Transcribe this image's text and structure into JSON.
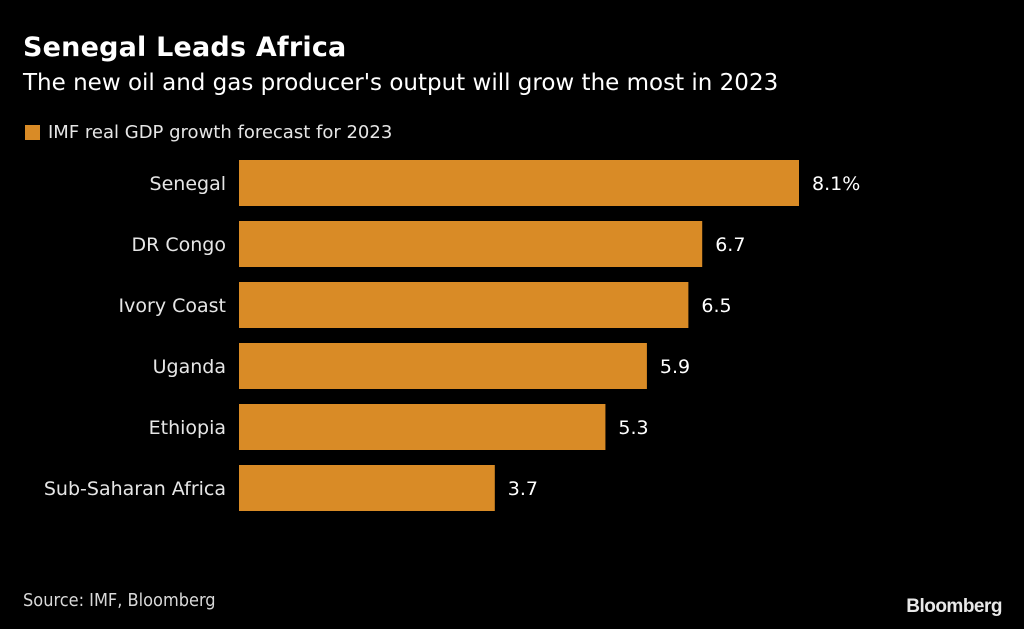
{
  "header": {
    "title": "Senegal Leads Africa",
    "subtitle": "The new oil and gas producer's output will grow the most in 2023"
  },
  "footer": {
    "source": "Source: IMF, Bloomberg",
    "brand": "Bloomberg"
  },
  "colors": {
    "background": "#000000",
    "bar": "#d98b26",
    "text": "#ffffff"
  },
  "chart_data": {
    "type": "bar",
    "orientation": "horizontal",
    "title": "Senegal Leads Africa",
    "subtitle": "The new oil and gas producer's output will grow the most in 2023",
    "legend": [
      {
        "name": "IMF real GDP growth forecast for 2023",
        "color": "#d98b26"
      }
    ],
    "legend_position": "top-left",
    "categories": [
      "Senegal",
      "DR Congo",
      "Ivory Coast",
      "Uganda",
      "Ethiopia",
      "Sub-Saharan Africa"
    ],
    "series": [
      {
        "name": "IMF real GDP growth forecast for 2023",
        "values": [
          8.1,
          6.7,
          6.5,
          5.9,
          5.3,
          3.7
        ],
        "labels": [
          "8.1%",
          "6.7",
          "6.5",
          "5.9",
          "5.3",
          "3.7"
        ]
      }
    ],
    "xlabel": "",
    "ylabel": "",
    "xlim": [
      0,
      8.1
    ],
    "grid": false,
    "source": "Source: IMF, Bloomberg"
  }
}
